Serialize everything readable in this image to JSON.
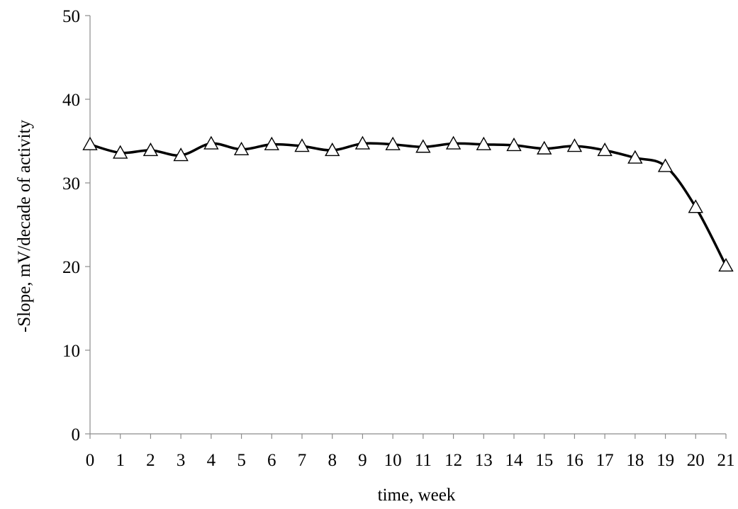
{
  "chart_data": {
    "type": "line",
    "xlabel": "time, week",
    "ylabel": "-Slope, mV/decade of activity",
    "xlim": [
      0,
      21
    ],
    "ylim": [
      0,
      50
    ],
    "y_ticks": [
      0,
      10,
      20,
      30,
      40,
      50
    ],
    "x_ticks": [
      0,
      1,
      2,
      3,
      4,
      5,
      6,
      7,
      8,
      9,
      10,
      11,
      12,
      13,
      14,
      15,
      16,
      17,
      18,
      19,
      20,
      21
    ],
    "grid": false,
    "legend": "none",
    "marker": "open-triangle",
    "line_color": "#000000",
    "axis_color": "#8c8c8c",
    "series": [
      {
        "x": [
          0,
          1,
          2,
          3,
          4,
          5,
          6,
          7,
          8,
          9,
          10,
          11,
          12,
          13,
          14,
          15,
          16,
          17,
          18,
          19,
          20,
          21
        ],
        "values": [
          34.6,
          33.6,
          33.9,
          33.3,
          34.7,
          34.0,
          34.6,
          34.4,
          33.9,
          34.7,
          34.6,
          34.3,
          34.7,
          34.6,
          34.5,
          34.1,
          34.4,
          33.9,
          33.0,
          32.0,
          27.1,
          20.1
        ]
      }
    ]
  }
}
